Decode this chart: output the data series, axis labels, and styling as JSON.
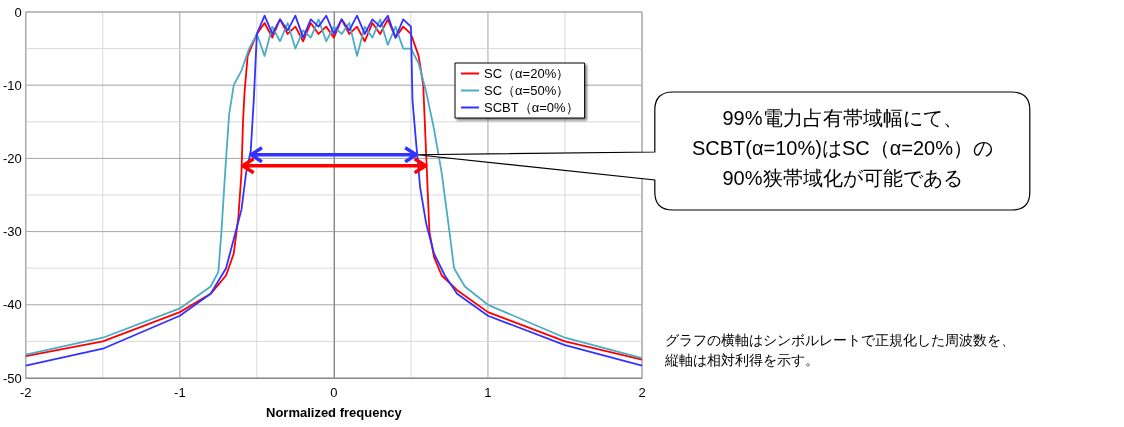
{
  "chart_data": {
    "type": "line",
    "xlabel": "Normalized frequency",
    "xlim": [
      -2,
      2
    ],
    "xticks": [
      -2,
      -1,
      0,
      1,
      2
    ],
    "ylim": [
      -50,
      0
    ],
    "yticks": [
      -50,
      -40,
      -30,
      -20,
      -10,
      0
    ],
    "grid": true,
    "ref_lines": [
      {
        "axis": "y",
        "value": -19.5,
        "color": "#3333ff"
      },
      {
        "axis": "y",
        "value": -21,
        "color": "#ff0000"
      }
    ],
    "legend": "top right",
    "marker": "none",
    "line_style": "solid",
    "series": [
      {
        "name": "SC（α=20%）",
        "color": "#ff0000",
        "x": [
          -2,
          -1.5,
          -1,
          -0.8,
          -0.7,
          -0.65,
          -0.62,
          -0.6,
          -0.59,
          -0.58,
          -0.56,
          -0.5,
          -0.45,
          -0.4,
          -0.35,
          -0.3,
          -0.25,
          -0.2,
          -0.15,
          -0.1,
          -0.05,
          0,
          0.05,
          0.1,
          0.15,
          0.2,
          0.25,
          0.3,
          0.35,
          0.4,
          0.45,
          0.5,
          0.55,
          0.58,
          0.6,
          0.62,
          0.65,
          0.7,
          0.8,
          1,
          1.5,
          2
        ],
        "values": [
          -47,
          -45,
          -41,
          -38.5,
          -36,
          -33,
          -28,
          -22,
          -15,
          -11,
          -6,
          -3,
          -1.5,
          -3.5,
          -1,
          -3,
          -2,
          -4,
          -1.5,
          -3,
          -2,
          -3.5,
          -1,
          -3,
          -2,
          -4,
          -1.5,
          -3,
          -1,
          -3.5,
          -2,
          -3,
          -6,
          -10,
          -20,
          -30,
          -33.5,
          -36,
          -38,
          -41,
          -45,
          -47.5
        ]
      },
      {
        "name": "SC（α=50%）",
        "color": "#4bacc6",
        "x": [
          -2,
          -1.5,
          -1,
          -0.8,
          -0.75,
          -0.73,
          -0.7,
          -0.68,
          -0.65,
          -0.6,
          -0.55,
          -0.5,
          -0.45,
          -0.4,
          -0.35,
          -0.3,
          -0.25,
          -0.2,
          -0.15,
          -0.1,
          -0.05,
          0,
          0.05,
          0.1,
          0.15,
          0.2,
          0.25,
          0.3,
          0.35,
          0.4,
          0.45,
          0.5,
          0.55,
          0.6,
          0.65,
          0.7,
          0.75,
          0.78,
          0.85,
          1,
          1.5,
          2
        ],
        "values": [
          -46.8,
          -44.5,
          -40.5,
          -37.5,
          -35.5,
          -30,
          -20,
          -14,
          -10,
          -8,
          -5,
          -3,
          -6,
          -2,
          -4,
          -1.5,
          -5,
          -2.5,
          -3.5,
          -1,
          -4,
          -2,
          -3,
          -1.5,
          -6,
          -2,
          -3.5,
          -1,
          -4.5,
          -2,
          -5,
          -5,
          -7,
          -11,
          -16,
          -22,
          -30,
          -35,
          -37.5,
          -40,
          -44.5,
          -47.3
        ]
      },
      {
        "name": "SCBT（α=0%）",
        "color": "#3333ff",
        "x": [
          -2,
          -1.5,
          -1,
          -0.8,
          -0.7,
          -0.65,
          -0.6,
          -0.57,
          -0.54,
          -0.52,
          -0.5,
          -0.45,
          -0.4,
          -0.35,
          -0.3,
          -0.25,
          -0.2,
          -0.15,
          -0.1,
          -0.05,
          0,
          0.05,
          0.1,
          0.15,
          0.2,
          0.25,
          0.3,
          0.35,
          0.4,
          0.45,
          0.5,
          0.51,
          0.53,
          0.56,
          0.6,
          0.65,
          0.72,
          0.8,
          1,
          1.5,
          2
        ],
        "values": [
          -48.3,
          -46,
          -41.5,
          -38.5,
          -35,
          -31,
          -27,
          -22,
          -19,
          -12,
          -3,
          -0.5,
          -3,
          -1,
          -2.5,
          -0.5,
          -3.5,
          -1,
          -2,
          -0.5,
          -3,
          -1,
          -2.5,
          -0.5,
          -3,
          -1,
          -2,
          -0.5,
          -3.5,
          -1,
          -2,
          -12,
          -17,
          -24,
          -29,
          -33,
          -36,
          -38.5,
          -41.5,
          -45.5,
          -48.3
        ]
      }
    ],
    "annotations": [
      "99%電力占有帯域幅にて、\nSCBT(α=10%)はSC（α=20%）の\n90%狭帯域化が可能である",
      "グラフの横軸はシンボルレートで正規化した周波数を、縦軸は相対利得を示す。"
    ]
  }
}
